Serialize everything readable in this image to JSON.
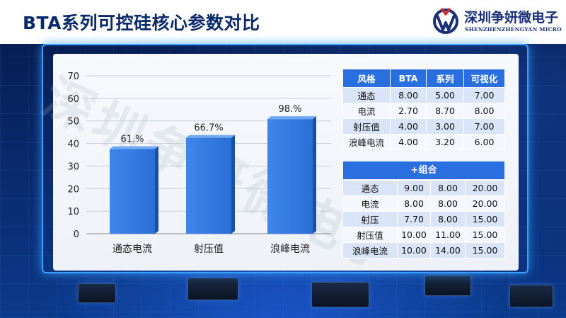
{
  "header": {
    "title": "BTA系列可控硅核心参数对比",
    "brand_name": "深圳争妍微电子",
    "brand_en": "SHENZHENZHENGYAN MICRO"
  },
  "watermark": "深圳争妍微电子",
  "chart_data": {
    "type": "bar",
    "categories": [
      "通态电流",
      "射压值",
      "浪峰电流"
    ],
    "values": [
      37.5,
      42.5,
      50.8
    ],
    "data_labels": [
      "61.%",
      "66.7%",
      "98.%"
    ],
    "yticks": [
      "0",
      "10",
      "20",
      "30",
      "40",
      "50",
      "60",
      "70"
    ],
    "ylim": [
      0,
      70
    ],
    "grid": true,
    "bar_color": "#2a6fd6"
  },
  "table1": {
    "headers": [
      "风格",
      "BTA",
      "系列",
      "可视化"
    ],
    "rows": [
      [
        "通态",
        "8.00",
        "5.00",
        "7.00"
      ],
      [
        "电流",
        "2.70",
        "8.70",
        "8.00"
      ],
      [
        "射压值",
        "4.00",
        "3.00",
        "7.00"
      ],
      [
        "浪峰电流",
        "4.00",
        "3.20",
        "6.00"
      ]
    ]
  },
  "table2": {
    "title": "+组合",
    "rows": [
      [
        "通态",
        "9.00",
        "8.00",
        "20.00"
      ],
      [
        "电流",
        "8.00",
        "8.00",
        "20.00"
      ],
      [
        "射压",
        "7.70",
        "8.00",
        "15.00"
      ],
      [
        "射压值",
        "10.00",
        "11.00",
        "15.00"
      ],
      [
        "浪峰电流",
        "10.00",
        "14.00",
        "15.00"
      ]
    ]
  },
  "colors": {
    "accent": "#2a6fe0",
    "frame_glow": "#3aa0ff",
    "title": "#0b2a6a"
  }
}
